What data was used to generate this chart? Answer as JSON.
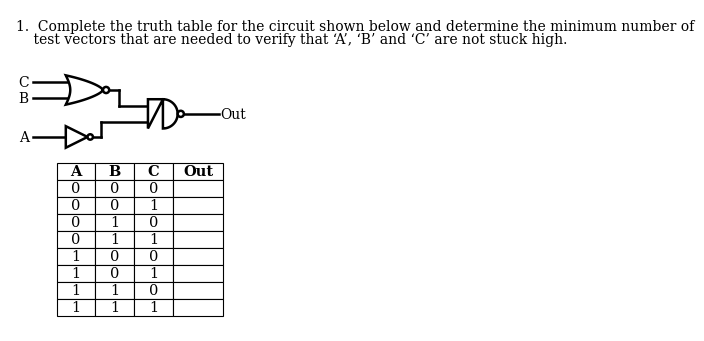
{
  "background_color": "#ffffff",
  "title_line1": "1.  Complete the truth table for the circuit shown below and determine the minimum number of",
  "title_line2": "    test vectors that are needed to verify that ‘A’, ‘B’ and ‘C’ are not stuck high.",
  "font_size_title": 10.0,
  "table_headers": [
    "A",
    "B",
    "C",
    "Out"
  ],
  "table_rows": [
    [
      "0",
      "0",
      "0",
      ""
    ],
    [
      "0",
      "0",
      "1",
      ""
    ],
    [
      "0",
      "1",
      "0",
      ""
    ],
    [
      "0",
      "1",
      "1",
      ""
    ],
    [
      "1",
      "0",
      "0",
      ""
    ],
    [
      "1",
      "0",
      "1",
      ""
    ],
    [
      "1",
      "1",
      "0",
      ""
    ],
    [
      "1",
      "1",
      "1",
      ""
    ]
  ],
  "font_size_table": 10.5
}
